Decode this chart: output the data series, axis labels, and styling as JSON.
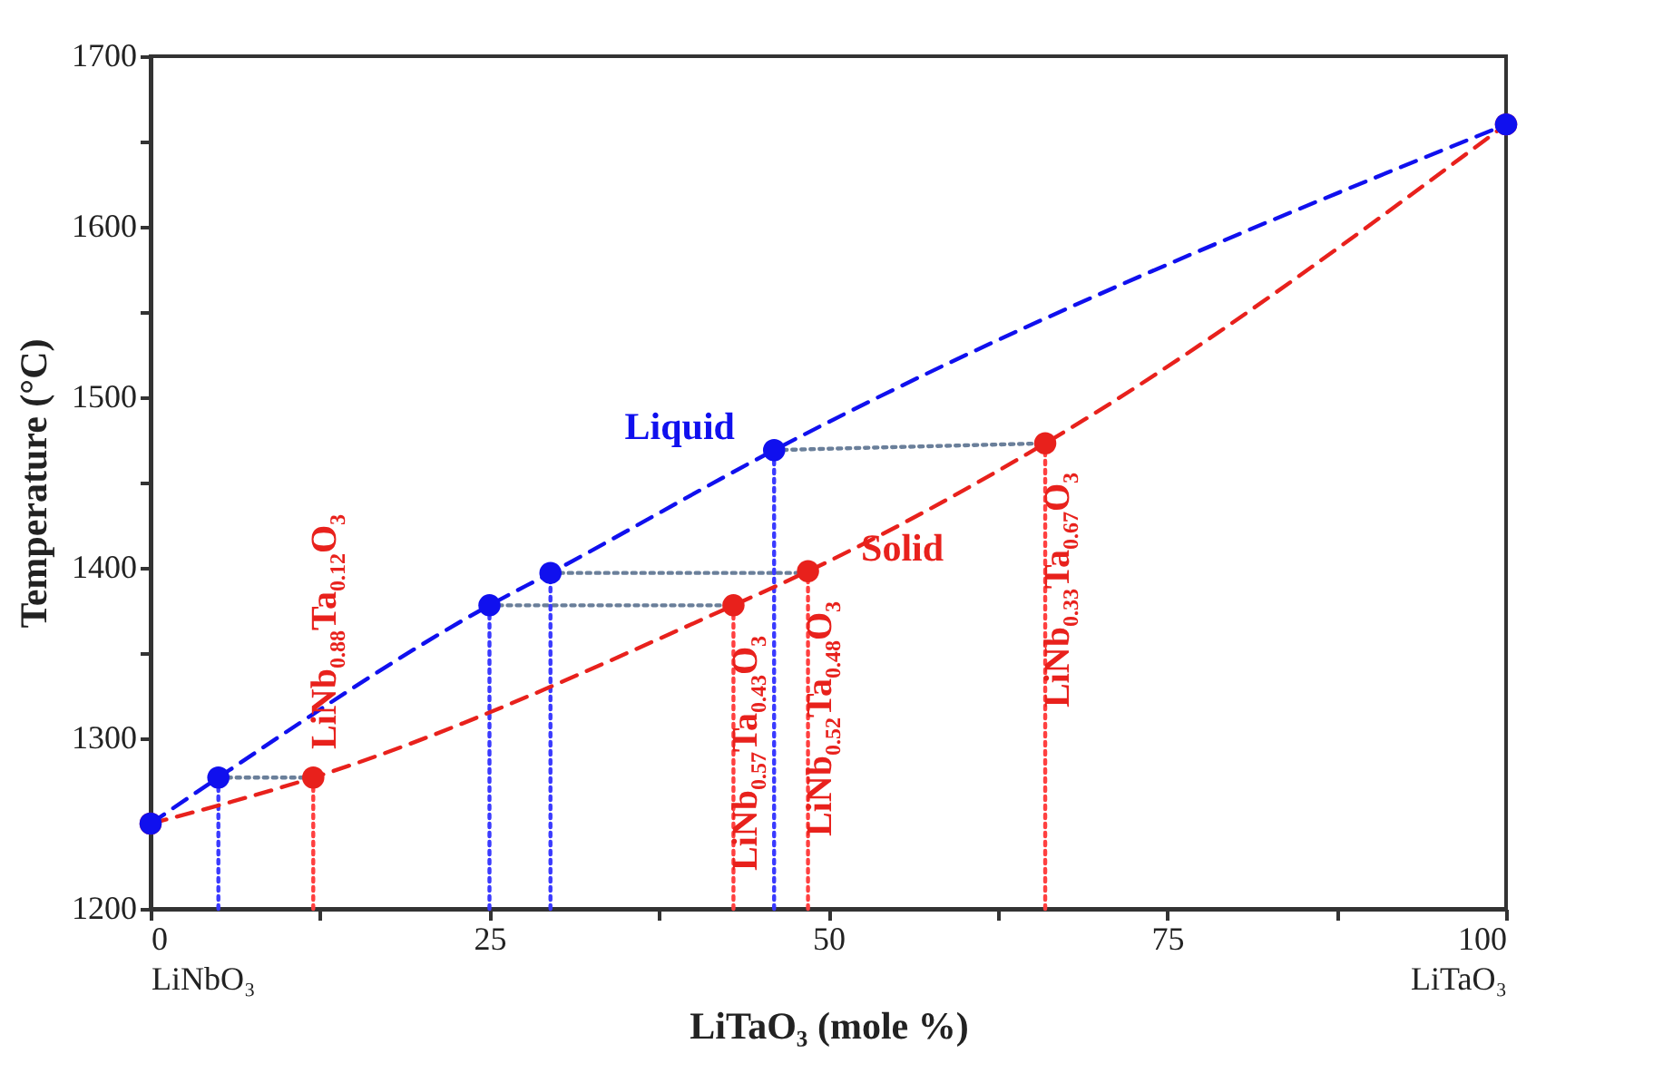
{
  "chart_data": {
    "type": "line",
    "xlabel": "LiTaO₃ (mole %)",
    "ylabel": "Temperature (°C)",
    "xlim": [
      0,
      100
    ],
    "ylim": [
      1200,
      1700
    ],
    "xticks": [
      {
        "value": 0,
        "label": "0\nLiNbO₃"
      },
      {
        "value": 12.5,
        "label": null
      },
      25,
      {
        "value": 37.5,
        "label": null
      },
      50,
      {
        "value": 62.5,
        "label": null
      },
      75,
      {
        "value": 87.5,
        "label": null
      },
      {
        "value": 100,
        "label": "100\nLiTaO₃"
      }
    ],
    "yticks": [
      1200,
      {
        "value": 1250,
        "label": null
      },
      1300,
      {
        "value": 1350,
        "label": null
      },
      1400,
      {
        "value": 1450,
        "label": null
      },
      1500,
      {
        "value": 1550,
        "label": null
      },
      1600,
      {
        "value": 1650,
        "label": null
      },
      1700
    ],
    "grid": false,
    "legend": false,
    "series": [
      {
        "color": "#6a7f9a",
        "line_style": "dotted",
        "marker": "none",
        "x": [
          5,
          12
        ],
        "values": [
          1277,
          1277
        ]
      },
      {
        "color": "#6a7f9a",
        "line_style": "dotted",
        "marker": "none",
        "x": [
          25,
          43
        ],
        "values": [
          1378,
          1378
        ]
      },
      {
        "color": "#6a7f9a",
        "line_style": "dotted",
        "marker": "none",
        "x": [
          29.5,
          48.5
        ],
        "values": [
          1397,
          1397
        ]
      },
      {
        "color": "#6a7f9a",
        "line_style": "dotted",
        "marker": "none",
        "x": [
          46,
          66
        ],
        "values": [
          1469,
          1473
        ]
      },
      {
        "color": "#3a3aff",
        "line_style": "dotted",
        "marker": "none",
        "x": [
          5,
          5
        ],
        "values": [
          1200,
          1277
        ]
      },
      {
        "color": "#3a3aff",
        "line_style": "dotted",
        "marker": "none",
        "x": [
          25,
          25
        ],
        "values": [
          1200,
          1378
        ]
      },
      {
        "color": "#3a3aff",
        "line_style": "dotted",
        "marker": "none",
        "x": [
          29.5,
          29.5
        ],
        "values": [
          1200,
          1397
        ]
      },
      {
        "color": "#3a3aff",
        "line_style": "dotted",
        "marker": "none",
        "x": [
          46,
          46
        ],
        "values": [
          1200,
          1469
        ]
      },
      {
        "color": "#ff4040",
        "line_style": "dotted",
        "marker": "none",
        "x": [
          12,
          12
        ],
        "values": [
          1200,
          1277
        ]
      },
      {
        "color": "#ff4040",
        "line_style": "dotted",
        "marker": "none",
        "x": [
          43,
          43
        ],
        "values": [
          1200,
          1378
        ]
      },
      {
        "color": "#ff4040",
        "line_style": "dotted",
        "marker": "none",
        "x": [
          48.5,
          48.5
        ],
        "values": [
          1200,
          1398
        ]
      },
      {
        "color": "#ff4040",
        "line_style": "dotted",
        "marker": "none",
        "x": [
          66,
          66
        ],
        "values": [
          1200,
          1473
        ]
      },
      {
        "name": "Solid",
        "color": "#e8211c",
        "line_style": "dashed",
        "marker": "circle",
        "x": [
          0,
          12,
          43,
          48.5,
          66,
          100
        ],
        "values": [
          1250,
          1277,
          1378,
          1398,
          1473,
          1660
        ]
      },
      {
        "name": "Liquid",
        "color": "#1010ee",
        "line_style": "dashed",
        "marker": "circle",
        "x": [
          0,
          5,
          25,
          29.5,
          46,
          100
        ],
        "values": [
          1250,
          1277,
          1378,
          1397,
          1469,
          1660
        ]
      }
    ],
    "annotations": [
      {
        "text": "LiNb$_{0.88}$Ta$_{0.12}$O$_{3}$",
        "x": 12,
        "y": 1277
      },
      {
        "text": "LiNb$_{0.57}$Ta$_{0.43}$O$_{3}$",
        "x": 43,
        "y": 1378
      },
      {
        "text": "LiNb$_{0.52}$Ta$_{0.48}$O$_{3}$",
        "x": 48.5,
        "y": 1398
      },
      {
        "text": "LiNb$_{0.33}$Ta$_{0.67}$O$_{3}$",
        "x": 66,
        "y": 1473
      }
    ]
  }
}
